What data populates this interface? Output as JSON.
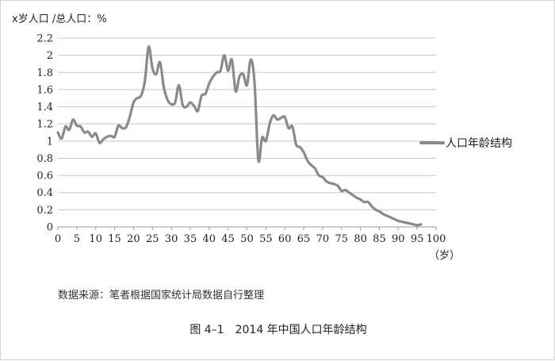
{
  "source_note": "数据来源：笔者根据国家统计局数据自行整理",
  "caption": "图 4–1　2014 年中国人口年龄结构",
  "chart_data": {
    "type": "line",
    "title": "",
    "ylabel": "x岁人口 /总人口：%",
    "xlabel": "（岁）",
    "xlim": [
      0,
      100
    ],
    "ylim": [
      0,
      2.2
    ],
    "xticks": [
      0,
      5,
      10,
      15,
      20,
      25,
      30,
      35,
      40,
      45,
      50,
      55,
      60,
      65,
      70,
      75,
      80,
      85,
      90,
      95,
      100
    ],
    "yticks": [
      0,
      0.2,
      0.4,
      0.6,
      0.8,
      1,
      1.2,
      1.4,
      1.6,
      1.8,
      2,
      2.2
    ],
    "ytick_labels": [
      "0",
      "0.2",
      "0.4",
      "0.6",
      "0.8",
      "1",
      "1.2",
      "1.4",
      "1.6",
      "1.8",
      "2",
      "2.2"
    ],
    "grid": "horizontal",
    "legend": "right",
    "color": "#8a8a8a",
    "series": [
      {
        "name": "人口年龄结构",
        "x": [
          0,
          1,
          2,
          3,
          4,
          5,
          6,
          7,
          8,
          9,
          10,
          11,
          12,
          13,
          14,
          15,
          16,
          17,
          18,
          19,
          20,
          21,
          22,
          23,
          24,
          25,
          26,
          27,
          28,
          29,
          30,
          31,
          32,
          33,
          34,
          35,
          36,
          37,
          38,
          39,
          40,
          41,
          42,
          43,
          44,
          45,
          46,
          47,
          48,
          49,
          50,
          51,
          52,
          53,
          54,
          55,
          56,
          57,
          58,
          59,
          60,
          61,
          62,
          63,
          64,
          65,
          66,
          67,
          68,
          69,
          70,
          71,
          72,
          73,
          74,
          75,
          76,
          77,
          78,
          79,
          80,
          81,
          82,
          83,
          84,
          85,
          86,
          87,
          88,
          89,
          90,
          91,
          92,
          93,
          94,
          95,
          96
        ],
        "values": [
          1.1,
          1.03,
          1.17,
          1.13,
          1.25,
          1.18,
          1.17,
          1.1,
          1.11,
          1.05,
          1.09,
          0.98,
          1.02,
          1.05,
          1.06,
          1.05,
          1.18,
          1.15,
          1.16,
          1.28,
          1.45,
          1.5,
          1.53,
          1.7,
          2.1,
          1.85,
          1.78,
          1.92,
          1.63,
          1.48,
          1.43,
          1.45,
          1.65,
          1.42,
          1.4,
          1.45,
          1.41,
          1.35,
          1.53,
          1.55,
          1.67,
          1.75,
          1.8,
          1.82,
          2.0,
          1.82,
          1.95,
          1.58,
          1.75,
          1.78,
          1.65,
          1.95,
          1.68,
          0.78,
          1.04,
          1.0,
          1.2,
          1.3,
          1.25,
          1.27,
          1.28,
          1.15,
          1.17,
          0.96,
          0.93,
          0.87,
          0.77,
          0.72,
          0.68,
          0.6,
          0.58,
          0.53,
          0.51,
          0.5,
          0.48,
          0.42,
          0.43,
          0.4,
          0.37,
          0.34,
          0.32,
          0.29,
          0.29,
          0.24,
          0.2,
          0.18,
          0.15,
          0.13,
          0.11,
          0.09,
          0.07,
          0.06,
          0.05,
          0.04,
          0.03,
          0.02,
          0.03
        ]
      }
    ]
  }
}
